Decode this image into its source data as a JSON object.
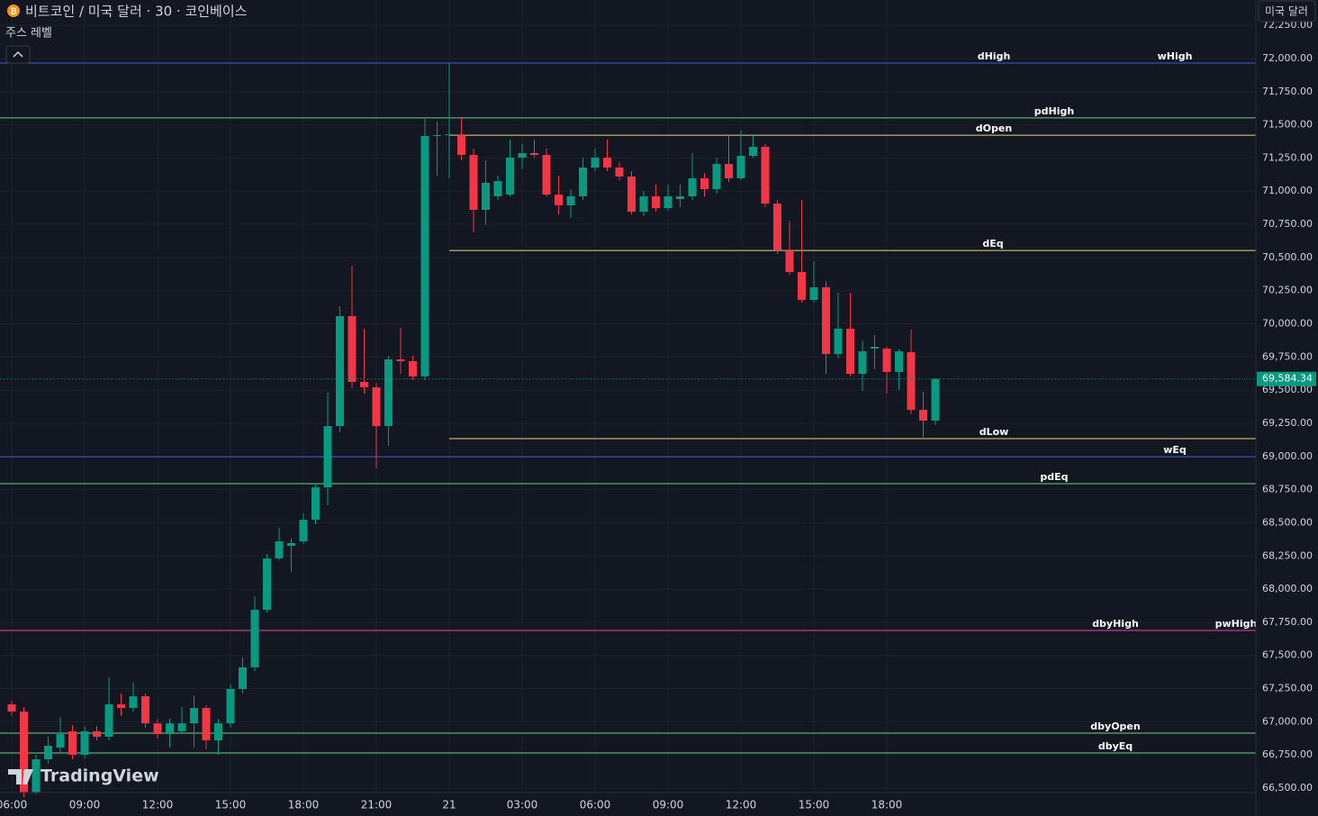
{
  "chart_data": {
    "type": "candlestick",
    "title": "비트코인 / 미국 달러 · 30 · 코인베이스",
    "indicator": "주스 레벨",
    "currency_button": "미국 달러",
    "logo": "TradingView",
    "categories": [
      "06:00",
      null,
      null,
      null,
      null,
      null,
      "09:00",
      null,
      null,
      null,
      null,
      null,
      "12:00",
      null,
      null,
      null,
      null,
      null,
      "15:00",
      null,
      null,
      null,
      null,
      null,
      "18:00",
      null,
      null,
      null,
      null,
      null,
      "21:00",
      null,
      null,
      null,
      null,
      null,
      "21",
      null,
      null,
      null,
      null,
      null,
      "03:00",
      null,
      null,
      null,
      null,
      null,
      "06:00",
      null,
      null,
      null,
      null,
      null,
      "09:00",
      null,
      null,
      null,
      null,
      null,
      "12:00",
      null,
      null,
      null,
      null,
      null,
      "15:00",
      null,
      null,
      null,
      null,
      null,
      "18:00",
      null,
      null,
      null,
      null
    ],
    "open": [
      67131,
      67077,
      66466,
      66717,
      66805,
      66928,
      66751,
      66928,
      66887,
      67131,
      67104,
      67192,
      66988,
      66907,
      66928,
      66988,
      67104,
      66860,
      66988,
      67247,
      67410,
      67844,
      68231,
      68326,
      68360,
      68523,
      68767,
      69229,
      70058,
      69562,
      69521,
      69229,
      69732,
      69718,
      69603,
      71416,
      71422,
      71422,
      71273,
      70859,
      70961,
      70974,
      71253,
      71287,
      71273,
      70974,
      70893,
      70961,
      71178,
      71253,
      71178,
      71110,
      70845,
      70961,
      70872,
      70940,
      70961,
      71097,
      71015,
      71205,
      71097,
      71266,
      71334,
      70906,
      70553,
      70390,
      70180,
      70275,
      69772,
      69963,
      69623,
      69813,
      69813,
      69637,
      69786,
      69351,
      69270
    ],
    "high": [
      67158,
      67111,
      66751,
      66887,
      67036,
      66975,
      66968,
      66968,
      67335,
      67213,
      67294,
      67213,
      67022,
      67022,
      67111,
      67199,
      67124,
      67022,
      67281,
      67484,
      67946,
      68265,
      68462,
      68380,
      68571,
      68801,
      69481,
      70132,
      70438,
      69963,
      69555,
      69759,
      69970,
      69759,
      71545,
      71524,
      71966,
      71558,
      71321,
      71232,
      71117,
      71389,
      71355,
      71389,
      71321,
      71117,
      71015,
      71253,
      71321,
      71389,
      71219,
      71151,
      71002,
      71049,
      71049,
      71049,
      71287,
      71137,
      71253,
      71422,
      71457,
      71422,
      71355,
      70934,
      70777,
      70934,
      70472,
      70322,
      70234,
      70234,
      69874,
      69915,
      69827,
      69807,
      69956,
      69487,
      69589
    ],
    "low": [
      67043,
      66432,
      66452,
      66683,
      66771,
      66717,
      66724,
      66860,
      66860,
      67043,
      67077,
      66955,
      66873,
      66805,
      66907,
      66805,
      66792,
      66751,
      66955,
      67213,
      67382,
      67824,
      68218,
      68129,
      68340,
      68489,
      68632,
      69182,
      69515,
      69474,
      68910,
      69080,
      69623,
      69576,
      69576,
      71117,
      71097,
      71232,
      70689,
      70744,
      70934,
      70961,
      71165,
      71253,
      70961,
      70825,
      70798,
      70934,
      71151,
      71151,
      71083,
      70825,
      70811,
      70845,
      70852,
      70879,
      70934,
      70961,
      70981,
      71069,
      71083,
      71253,
      70879,
      70526,
      70370,
      70160,
      70160,
      69623,
      69739,
      69603,
      69494,
      69657,
      69474,
      69501,
      69318,
      69134,
      69236
    ],
    "close": [
      67077,
      66466,
      66717,
      66819,
      66907,
      66751,
      66928,
      66887,
      67131,
      67104,
      67192,
      66988,
      66907,
      66988,
      66988,
      67104,
      66860,
      66988,
      67247,
      67410,
      67844,
      68231,
      68360,
      68347,
      68523,
      68767,
      69229,
      70058,
      69562,
      69521,
      69229,
      69732,
      69718,
      69603,
      71416,
      71422,
      71429,
      71273,
      70859,
      71063,
      71076,
      71253,
      71287,
      71273,
      70974,
      70893,
      70961,
      71178,
      71253,
      71178,
      71110,
      70845,
      70961,
      70872,
      70961,
      70961,
      71097,
      71015,
      71205,
      71097,
      71266,
      71334,
      70906,
      70553,
      70390,
      70180,
      70275,
      69772,
      69963,
      69623,
      69793,
      69827,
      69637,
      69793,
      69351,
      69270,
      69584.34
    ],
    "up_color": "#089981",
    "down_color": "#f23645",
    "last_price": {
      "value": 69584.34,
      "label": "69,584.34"
    },
    "levels": [
      {
        "name": "dHigh",
        "value": 71966,
        "color": "#3f5bd0"
      },
      {
        "name": "wHigh",
        "value": 71966,
        "color": "#3f5bd0"
      },
      {
        "name": "pdHigh",
        "value": 71552,
        "color": "#6fcf8a"
      },
      {
        "name": "dOpen",
        "value": 71422,
        "color": "#e8d77f"
      },
      {
        "name": "dEq",
        "value": 70553,
        "color": "#e8d77f"
      },
      {
        "name": "dLow",
        "value": 69134,
        "color": "#e8d77f"
      },
      {
        "name": "wEq",
        "value": 68998,
        "color": "#3f5bd0"
      },
      {
        "name": "pdEq",
        "value": 68795,
        "color": "#6fcf8a"
      },
      {
        "name": "dbyHigh",
        "value": 67688,
        "color": "#e04aa8"
      },
      {
        "name": "pwHigh",
        "value": 67688,
        "color": "#e04aa8"
      },
      {
        "name": "dbyOpen",
        "value": 66914,
        "color": "#6fcf8a"
      },
      {
        "name": "dbyEq",
        "value": 66765,
        "color": "#6fcf8a"
      }
    ],
    "ylim": [
      66466,
      72441
    ],
    "yticks": [
      {
        "value": 66500,
        "label": "66,500.00"
      },
      {
        "value": 66750,
        "label": "66,750.00"
      },
      {
        "value": 67000,
        "label": "67,000.00"
      },
      {
        "value": 67250,
        "label": "67,250.00"
      },
      {
        "value": 67500,
        "label": "67,500.00"
      },
      {
        "value": 67750,
        "label": "67,750.00"
      },
      {
        "value": 68000,
        "label": "68,000.00"
      },
      {
        "value": 68250,
        "label": "68,250.00"
      },
      {
        "value": 68500,
        "label": "68,500.00"
      },
      {
        "value": 68750,
        "label": "68,750.00"
      },
      {
        "value": 69000,
        "label": "69,000.00"
      },
      {
        "value": 69250,
        "label": "69,250.00"
      },
      {
        "value": 69500,
        "label": "69,500.00"
      },
      {
        "value": 69750,
        "label": "69,750.00"
      },
      {
        "value": 70000,
        "label": "70,000.00"
      },
      {
        "value": 70250,
        "label": "70,250.00"
      },
      {
        "value": 70500,
        "label": "70,500.00"
      },
      {
        "value": 70750,
        "label": "70,750.00"
      },
      {
        "value": 71000,
        "label": "71,000.00"
      },
      {
        "value": 71250,
        "label": "71,250.00"
      },
      {
        "value": 71500,
        "label": "71,500.00"
      },
      {
        "value": 71750,
        "label": "71,750.00"
      },
      {
        "value": 72000,
        "label": "72,000.00"
      },
      {
        "value": 72250,
        "label": "72,250.00"
      }
    ],
    "grid": true
  }
}
